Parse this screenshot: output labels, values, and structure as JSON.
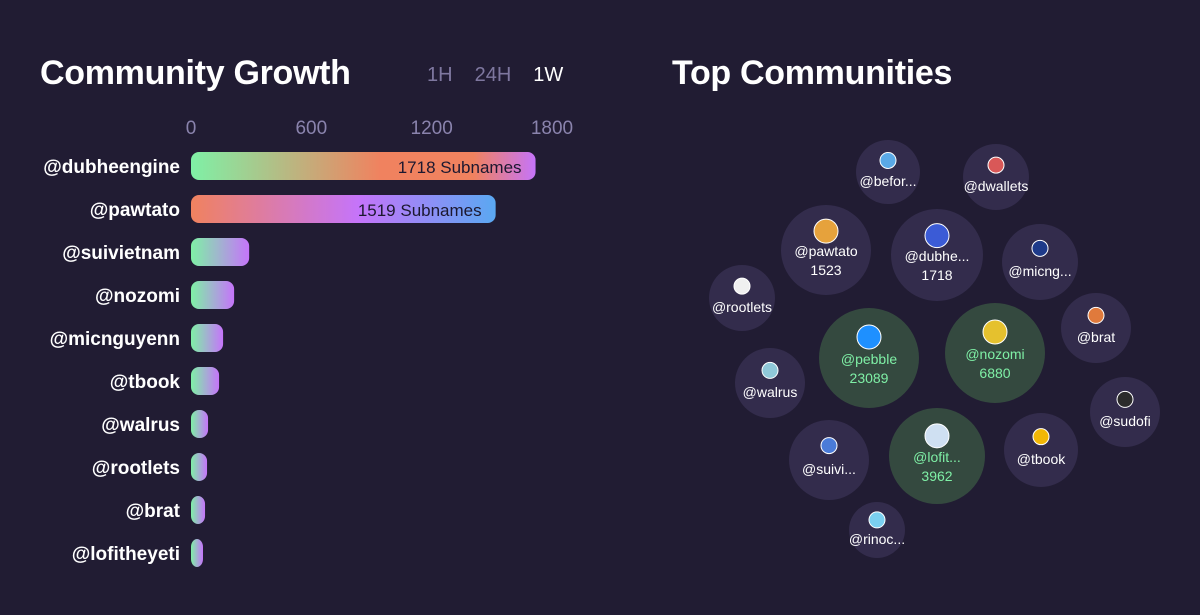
{
  "header": {
    "growth_title": "Community Growth",
    "top_title": "Top Communities",
    "ranges": [
      "1H",
      "24H",
      "1W"
    ],
    "active_range": "1W"
  },
  "colors": {
    "background": "#211c33",
    "bubble": "#332c4c",
    "bubble_highlight": "#34493f",
    "highlight_text": "#7ff0a6",
    "bar_green": "#7ff0a6",
    "bar_orange": "#f0825f",
    "bar_purple": "#c574fa",
    "bar_blue": "#5aa8f2",
    "axis_text": "#8a83ad"
  },
  "chart_data": [
    {
      "type": "bar",
      "orientation": "horizontal",
      "title": "Community Growth",
      "xlim": [
        0,
        1800
      ],
      "x_ticks": [
        0,
        600,
        1200,
        1800
      ],
      "value_suffix": "Subnames",
      "categories": [
        "@dubheengine",
        "@pawtato",
        "@suivietnam",
        "@nozomi",
        "@micnguyenn",
        "@tbook",
        "@walrus",
        "@rootlets",
        "@brat",
        "@lofitheyeti"
      ],
      "values": [
        1718,
        1519,
        290,
        215,
        160,
        140,
        85,
        80,
        70,
        55
      ],
      "shown_labels": [
        true,
        true,
        false,
        false,
        false,
        false,
        false,
        false,
        false,
        false
      ]
    },
    {
      "type": "bubble",
      "title": "Top Communities",
      "items": [
        {
          "label": "@befor...",
          "icon": "globe-icon"
        },
        {
          "label": "@dwallets",
          "icon": "dwallets-logo-icon"
        },
        {
          "label": "@pawtato",
          "value": "1523",
          "icon": "pawtato-logo-icon"
        },
        {
          "label": "@dubhe...",
          "value": "1718",
          "icon": "dubhe-logo-icon"
        },
        {
          "label": "@micng...",
          "icon": "sui-logo-icon"
        },
        {
          "label": "@rootlets",
          "icon": "rootlets-logo-icon"
        },
        {
          "label": "@pebble",
          "value": "23089",
          "icon": "pebble-logo-icon",
          "highlight": true
        },
        {
          "label": "@nozomi",
          "value": "6880",
          "icon": "nozomi-logo-icon",
          "highlight": true
        },
        {
          "label": "@brat",
          "icon": "brat-logo-icon"
        },
        {
          "label": "@walrus",
          "icon": "walrus-logo-icon"
        },
        {
          "label": "@sudofi",
          "icon": "sudofi-logo-icon"
        },
        {
          "label": "@suivi...",
          "icon": "drop-icon"
        },
        {
          "label": "@lofit...",
          "value": "3962",
          "icon": "yeti-logo-icon",
          "highlight": true
        },
        {
          "label": "@tbook",
          "icon": "tbook-logo-icon"
        },
        {
          "label": "@rinoc...",
          "icon": "rinoco-logo-icon"
        }
      ]
    }
  ]
}
